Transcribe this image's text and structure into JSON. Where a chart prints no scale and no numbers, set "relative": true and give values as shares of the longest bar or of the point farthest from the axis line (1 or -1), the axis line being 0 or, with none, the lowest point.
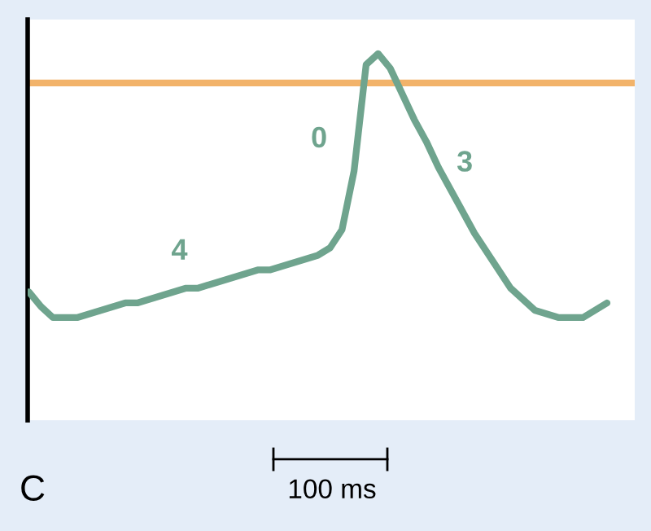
{
  "chart_data": {
    "type": "line",
    "relative": true,
    "categories": [
      null,
      null,
      null,
      null,
      null,
      null,
      null,
      null,
      null,
      null,
      null,
      null,
      null,
      null,
      null,
      null,
      null,
      null,
      null,
      null,
      null,
      null,
      null,
      null,
      null,
      null,
      null,
      null,
      null,
      null,
      null,
      null,
      null,
      null,
      null,
      null,
      null,
      null,
      null,
      null,
      null,
      null,
      null,
      null,
      null,
      null,
      null,
      null,
      null
    ],
    "series": [
      {
        "color": "#6fa48e",
        "values": [
          0.35,
          0.31,
          0.28,
          0.28,
          0.28,
          0.29,
          0.3,
          0.31,
          0.32,
          0.32,
          0.33,
          0.34,
          0.35,
          0.36,
          0.36,
          0.37,
          0.38,
          0.39,
          0.4,
          0.41,
          0.41,
          0.42,
          0.43,
          0.44,
          0.45,
          0.47,
          0.52,
          0.68,
          0.97,
          1,
          0.96,
          0.89,
          0.82,
          0.76,
          0.69,
          0.63,
          0.57,
          0.51,
          0.46,
          0.41,
          0.36,
          0.33,
          0.3,
          0.29,
          0.28,
          0.28,
          0.28,
          0.3,
          0.32
        ]
      }
    ],
    "marker": "none",
    "line_style": "solid",
    "ref_lines": [
      {
        "axis": "y",
        "value": 0.92,
        "color": "#f2b36a"
      }
    ],
    "annotations": [
      "4",
      "0",
      "3",
      "100 ms",
      "C"
    ]
  }
}
